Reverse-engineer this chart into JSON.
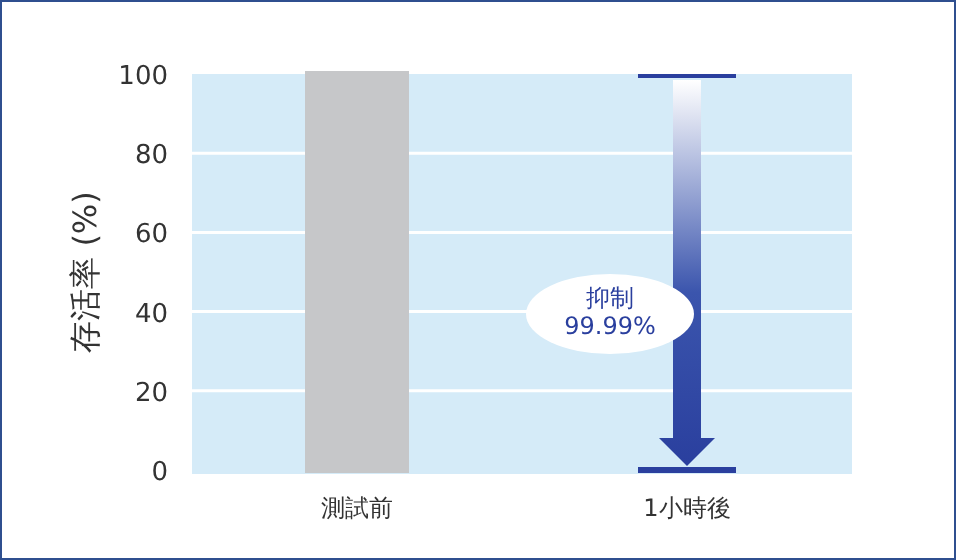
{
  "chart_data": {
    "type": "bar",
    "ylabel": "存活率 (%)",
    "categories": [
      "測試前",
      "1小時後"
    ],
    "values": [
      100,
      0
    ],
    "colors": [
      "#c6c7c9",
      "#2a3f9e"
    ],
    "ylim": [
      0,
      100
    ],
    "yticks": [
      0,
      20,
      40,
      60,
      80,
      100
    ],
    "grid": "y",
    "annotations": [
      "抑制\n99.99%"
    ]
  }
}
